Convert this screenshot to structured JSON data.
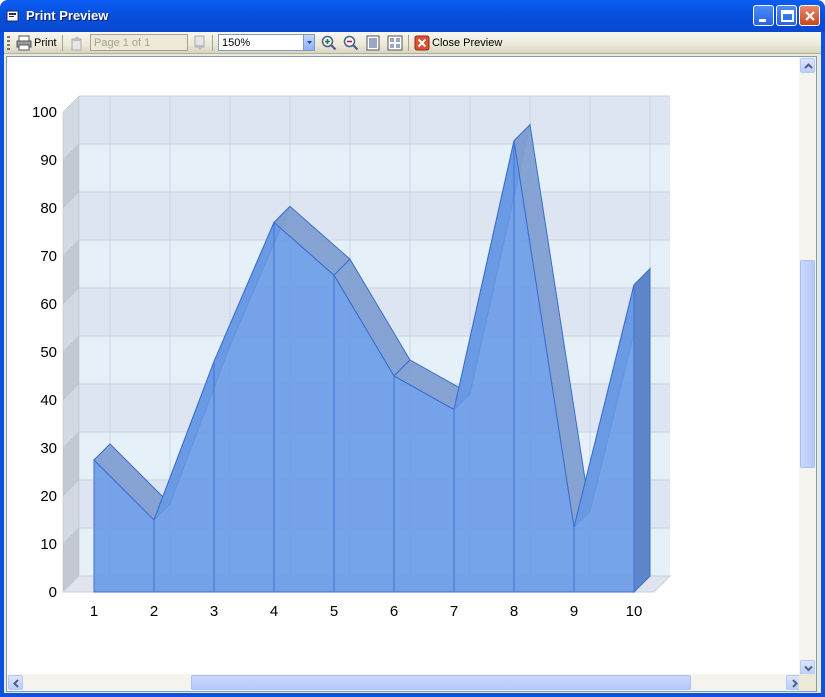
{
  "window": {
    "title": "Print Preview"
  },
  "toolbar": {
    "print_label": "Print",
    "page_placeholder": "Page 1 of 1",
    "zoom_value": "150%",
    "close_preview_label": "Close Preview"
  },
  "colors": {
    "area_fill": "#6699e6",
    "area_stroke": "#3a6fcf",
    "plot_band_light": "#e6f0f8",
    "plot_band_dark": "#dde5f2",
    "grid": "#c8d3e3"
  },
  "chart_data": {
    "type": "area",
    "x": [
      1,
      2,
      3,
      4,
      5,
      6,
      7,
      8,
      9,
      10
    ],
    "categories": [
      "1",
      "2",
      "3",
      "4",
      "5",
      "6",
      "7",
      "8",
      "9",
      "10"
    ],
    "series": [
      {
        "values": [
          27.5,
          15,
          48,
          77,
          66,
          45,
          38,
          94,
          13.5,
          64
        ]
      }
    ],
    "ylim": [
      0,
      100
    ],
    "yticks": [
      "0",
      "10",
      "20",
      "30",
      "40",
      "50",
      "60",
      "70",
      "80",
      "90",
      "100"
    ],
    "grid": true,
    "three_d": true,
    "title": "",
    "xlabel": "",
    "ylabel": ""
  }
}
